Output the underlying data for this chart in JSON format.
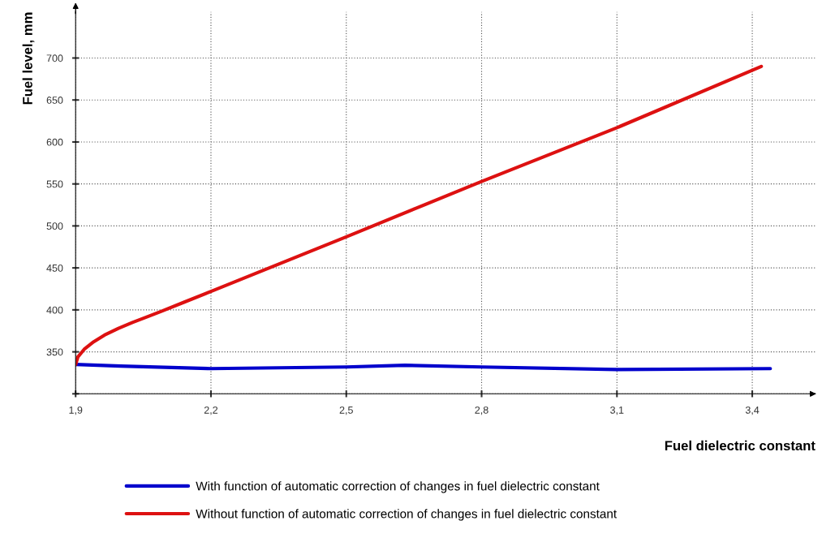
{
  "chart_data": {
    "type": "line",
    "xlabel": "Fuel dielectric constant",
    "ylabel": "Fuel level, mm",
    "xlim": [
      1.9,
      3.54
    ],
    "ylim": [
      300,
      755
    ],
    "xticks": [
      {
        "value": 1.9,
        "label": "1,9"
      },
      {
        "value": 2.2,
        "label": "2,2"
      },
      {
        "value": 2.5,
        "label": "2,5"
      },
      {
        "value": 2.8,
        "label": "2,8"
      },
      {
        "value": 3.1,
        "label": "3,1"
      },
      {
        "value": 3.4,
        "label": "3,4"
      }
    ],
    "yticks": [
      {
        "value": 300,
        "label": null
      },
      350,
      400,
      450,
      500,
      550,
      600,
      650,
      700
    ],
    "grid": true,
    "legend": "bottom",
    "marker": "none",
    "line_style": "solid",
    "series": [
      {
        "name": "With function of automatic correction of changes in fuel dielectric constant",
        "color": "#0000cc",
        "x": [
          1.9,
          2.0,
          2.2,
          2.5,
          2.63,
          2.8,
          3.1,
          3.44
        ],
        "values": [
          335,
          333,
          330,
          332,
          334,
          332,
          329,
          330
        ]
      },
      {
        "name": "Without function of automatic correction of changes in fuel dielectric constant",
        "color": "#dd1111",
        "x": [
          1.9,
          1.905,
          1.919,
          1.94,
          1.964,
          1.995,
          2.026,
          2.06,
          2.089,
          2.14,
          2.2,
          2.5,
          2.8,
          3.1,
          3.42
        ],
        "values": [
          335,
          344,
          353,
          362,
          370,
          378,
          385,
          392,
          398,
          409,
          422,
          487,
          553,
          617,
          690
        ]
      }
    ]
  }
}
